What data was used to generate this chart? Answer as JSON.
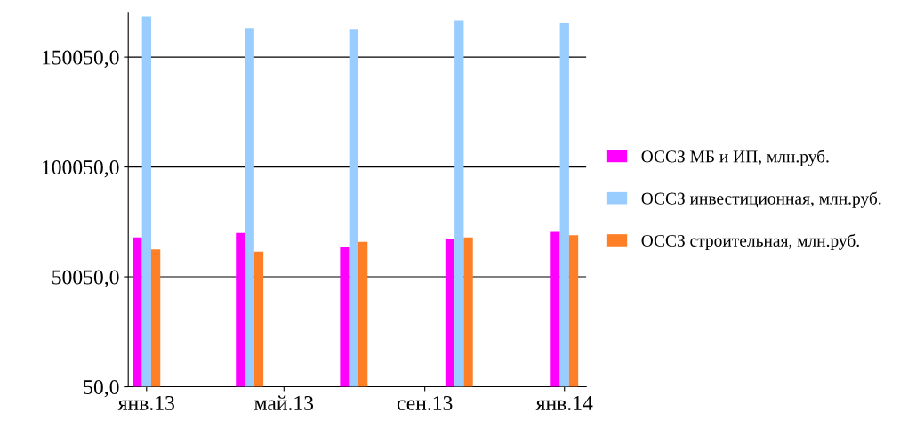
{
  "chart_data": {
    "type": "bar",
    "x": [
      "2013-01-01",
      "2013-04-01",
      "2013-07-01",
      "2013-10-01",
      "2014-01-01"
    ],
    "series": [
      {
        "name": "ОССЗ МБ и ИП, млн.руб.",
        "color": "#ff00ff",
        "values": [
          68000,
          70000,
          63500,
          67500,
          70500
        ]
      },
      {
        "name": "ОССЗ инвестиционная, млн.руб.",
        "color": "#99ccff",
        "values": [
          168500,
          163000,
          162500,
          166500,
          165500
        ]
      },
      {
        "name": "ОССЗ строительная, млн.руб.",
        "color": "#ff7f27",
        "values": [
          62500,
          61500,
          66000,
          68000,
          69000
        ]
      }
    ],
    "ylim": [
      50,
      170050
    ],
    "yticks": [
      {
        "value": 50,
        "label": "50,0"
      },
      {
        "value": 50050,
        "label": "50050,0"
      },
      {
        "value": 100050,
        "label": "100050,0"
      },
      {
        "value": 150050,
        "label": "150050,0"
      }
    ],
    "xlim": [
      "2012-12-16",
      "2014-01-20"
    ],
    "xticks": [
      {
        "value": "2013-01-01",
        "label": "янв.13"
      },
      {
        "value": "2013-05-01",
        "label": "май.13"
      },
      {
        "value": "2013-09-01",
        "label": "сен.13"
      },
      {
        "value": "2014-01-01",
        "label": "янв.14"
      }
    ],
    "grid": "y",
    "legend": "right"
  }
}
